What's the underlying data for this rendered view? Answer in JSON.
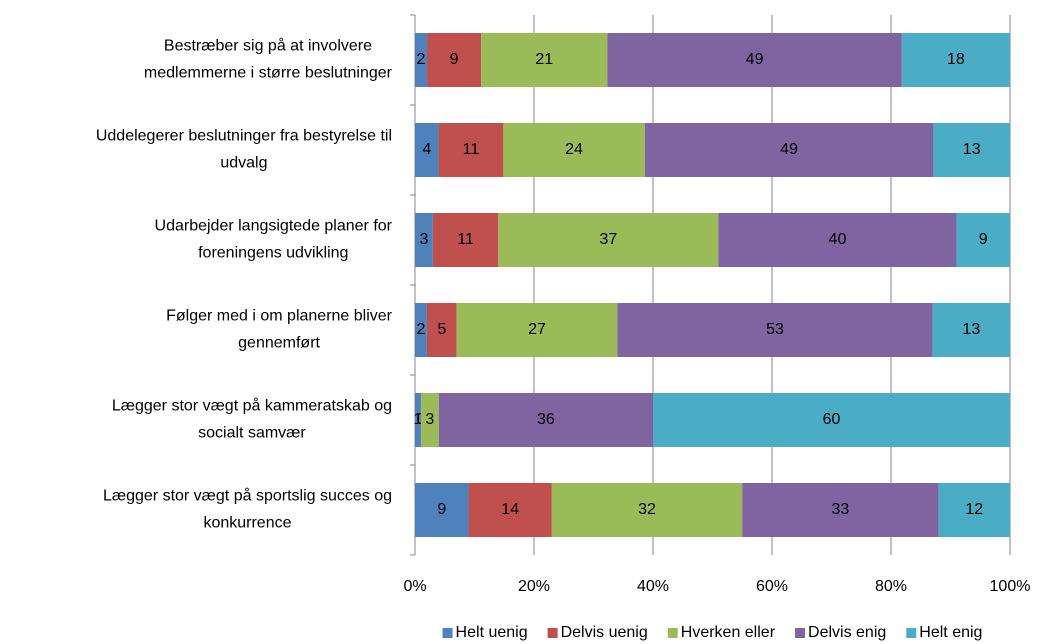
{
  "chart_data": {
    "type": "bar",
    "orientation": "horizontal",
    "stacking": "percent",
    "categories": [
      [
        "Bestræber sig på at involvere",
        "medlemmerne i større beslutninger"
      ],
      [
        "Uddelegerer beslutninger fra bestyrelse til",
        "udvalg"
      ],
      [
        "Udarbejder langsigtede planer for",
        "foreningens udvikling"
      ],
      [
        "Følger med i om planerne bliver",
        "gennemført"
      ],
      [
        "Lægger stor vægt på kammeratskab og",
        "socialt samvær"
      ],
      [
        "Lægger stor vægt på sportslig succes og",
        "konkurrence"
      ]
    ],
    "series": [
      {
        "name": "Helt uenig",
        "color": "#4f81bd",
        "values": [
          2,
          4,
          3,
          2,
          1,
          9
        ]
      },
      {
        "name": "Delvis uenig",
        "color": "#c0504d",
        "values": [
          9,
          11,
          11,
          5,
          0,
          14
        ]
      },
      {
        "name": "Hverken eller",
        "color": "#9bbb59",
        "values": [
          21,
          24,
          37,
          27,
          3,
          32
        ]
      },
      {
        "name": "Delvis enig",
        "color": "#8064a2",
        "values": [
          49,
          49,
          40,
          53,
          36,
          33
        ]
      },
      {
        "name": "Helt enig",
        "color": "#4bacc6",
        "values": [
          18,
          13,
          9,
          13,
          60,
          12
        ]
      }
    ],
    "xlim": [
      0,
      100
    ],
    "xticks": [
      {
        "value": 0,
        "label": "0%"
      },
      {
        "value": 20,
        "label": "20%"
      },
      {
        "value": 40,
        "label": "40%"
      },
      {
        "value": 60,
        "label": "60%"
      },
      {
        "value": 80,
        "label": "80%"
      },
      {
        "value": 100,
        "label": "100%"
      }
    ],
    "grid": true,
    "data_labels": true,
    "legend": "bottom"
  }
}
